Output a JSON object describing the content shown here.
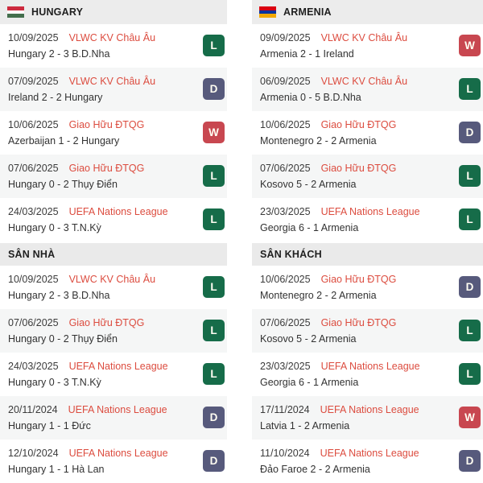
{
  "result_colors": {
    "W": "#c84750",
    "L": "#166c49",
    "D": "#575a7c"
  },
  "competition_color": "#dc4c3f",
  "columns": [
    {
      "team": "HUNGARY",
      "flag_icon": "hungary-flag-icon",
      "flag_colors": [
        "#cd2a3e",
        "#ffffff",
        "#436f4d"
      ],
      "sections": [
        {
          "title": "",
          "rows": [
            {
              "date": "10/09/2025",
              "competition": "VLWC KV Châu Âu",
              "match": "Hungary 2 - 3 B.D.Nha",
              "result": "L"
            },
            {
              "date": "07/09/2025",
              "competition": "VLWC KV Châu Âu",
              "match": "Ireland 2 - 2 Hungary",
              "result": "D"
            },
            {
              "date": "10/06/2025",
              "competition": "Giao Hữu ĐTQG",
              "match": "Azerbaijan 1 - 2 Hungary",
              "result": "W"
            },
            {
              "date": "07/06/2025",
              "competition": "Giao Hữu ĐTQG",
              "match": "Hungary 0 - 2 Thụy Điển",
              "result": "L"
            },
            {
              "date": "24/03/2025",
              "competition": "UEFA Nations League",
              "match": "Hungary 0 - 3 T.N.Kỳ",
              "result": "L"
            }
          ]
        },
        {
          "title": "SÂN NHÀ",
          "rows": [
            {
              "date": "10/09/2025",
              "competition": "VLWC KV Châu Âu",
              "match": "Hungary 2 - 3 B.D.Nha",
              "result": "L"
            },
            {
              "date": "07/06/2025",
              "competition": "Giao Hữu ĐTQG",
              "match": "Hungary 0 - 2 Thụy Điển",
              "result": "L"
            },
            {
              "date": "24/03/2025",
              "competition": "UEFA Nations League",
              "match": "Hungary 0 - 3 T.N.Kỳ",
              "result": "L"
            },
            {
              "date": "20/11/2024",
              "competition": "UEFA Nations League",
              "match": "Hungary 1 - 1 Đức",
              "result": "D"
            },
            {
              "date": "12/10/2024",
              "competition": "UEFA Nations League",
              "match": "Hungary 1 - 1 Hà Lan",
              "result": "D"
            }
          ]
        }
      ]
    },
    {
      "team": "ARMENIA",
      "flag_icon": "armenia-flag-icon",
      "flag_colors": [
        "#d90012",
        "#0033a0",
        "#f2a800"
      ],
      "sections": [
        {
          "title": "",
          "rows": [
            {
              "date": "09/09/2025",
              "competition": "VLWC KV Châu Âu",
              "match": "Armenia 2 - 1 Ireland",
              "result": "W"
            },
            {
              "date": "06/09/2025",
              "competition": "VLWC KV Châu Âu",
              "match": "Armenia 0 - 5 B.D.Nha",
              "result": "L"
            },
            {
              "date": "10/06/2025",
              "competition": "Giao Hữu ĐTQG",
              "match": "Montenegro 2 - 2 Armenia",
              "result": "D"
            },
            {
              "date": "07/06/2025",
              "competition": "Giao Hữu ĐTQG",
              "match": "Kosovo 5 - 2 Armenia",
              "result": "L"
            },
            {
              "date": "23/03/2025",
              "competition": "UEFA Nations League",
              "match": "Georgia 6 - 1 Armenia",
              "result": "L"
            }
          ]
        },
        {
          "title": "SÂN KHÁCH",
          "rows": [
            {
              "date": "10/06/2025",
              "competition": "Giao Hữu ĐTQG",
              "match": "Montenegro 2 - 2 Armenia",
              "result": "D"
            },
            {
              "date": "07/06/2025",
              "competition": "Giao Hữu ĐTQG",
              "match": "Kosovo 5 - 2 Armenia",
              "result": "L"
            },
            {
              "date": "23/03/2025",
              "competition": "UEFA Nations League",
              "match": "Georgia 6 - 1 Armenia",
              "result": "L"
            },
            {
              "date": "17/11/2024",
              "competition": "UEFA Nations League",
              "match": "Latvia 1 - 2 Armenia",
              "result": "W"
            },
            {
              "date": "11/10/2024",
              "competition": "UEFA Nations League",
              "match": "Đảo Faroe 2 - 2 Armenia",
              "result": "D"
            }
          ]
        }
      ]
    }
  ]
}
